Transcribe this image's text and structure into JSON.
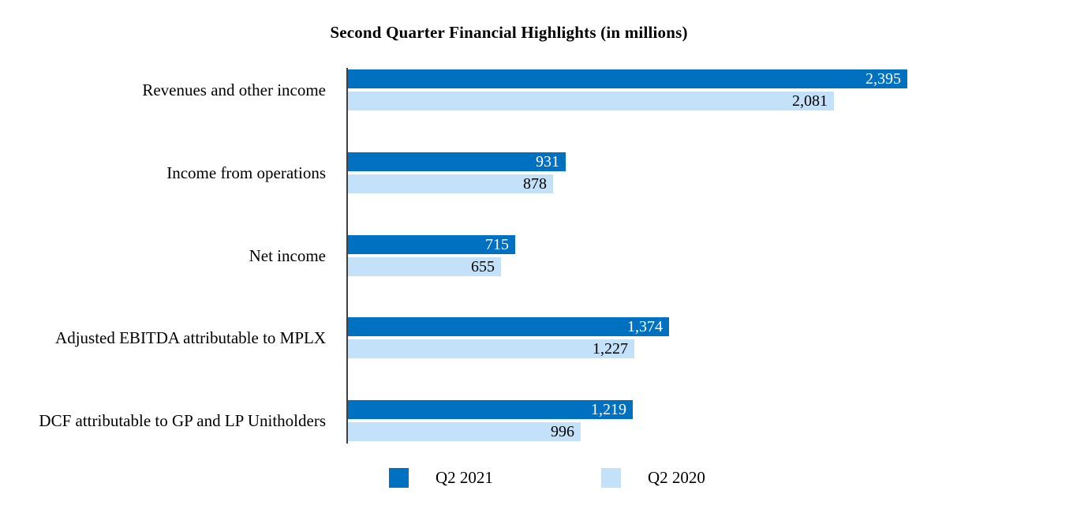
{
  "title": "Second Quarter Financial Highlights (in millions)",
  "colors": {
    "q2_2021_bar": "#0070C0",
    "q2_2020_bar": "#C3E1F9",
    "axis": "#404040",
    "q2_2021_value_text": "#FFFFFF",
    "q2_2020_value_text": "#000000",
    "background": "#FFFFFF"
  },
  "legend": [
    {
      "label": "Q2 2021",
      "color": "#0070C0"
    },
    {
      "label": "Q2 2020",
      "color": "#C3E1F9"
    }
  ],
  "chart_data": {
    "type": "bar",
    "orientation": "horizontal",
    "title": "Second Quarter Financial Highlights (in millions)",
    "categories": [
      "Revenues and other income",
      "Income from operations",
      "Net income",
      "Adjusted EBITDA attributable to MPLX",
      "DCF attributable to GP and LP Unitholders"
    ],
    "series": [
      {
        "name": "Q2 2021",
        "values": [
          2395,
          931,
          715,
          1374,
          1219
        ],
        "labels": [
          "2,395",
          "931",
          "715",
          "1,374",
          "1,219"
        ],
        "color": "#0070C0",
        "label_color": "#FFFFFF"
      },
      {
        "name": "Q2 2020",
        "values": [
          2081,
          878,
          655,
          1227,
          996
        ],
        "labels": [
          "2,081",
          "878",
          "655",
          "1,227",
          "996"
        ],
        "color": "#C3E1F9",
        "label_color": "#000000"
      }
    ],
    "xlim": [
      0,
      2500
    ],
    "xlabel": "",
    "ylabel": "",
    "grid": false,
    "axis_tick_labels_visible": false,
    "value_labels": "inside-end",
    "legend_position": "bottom"
  }
}
